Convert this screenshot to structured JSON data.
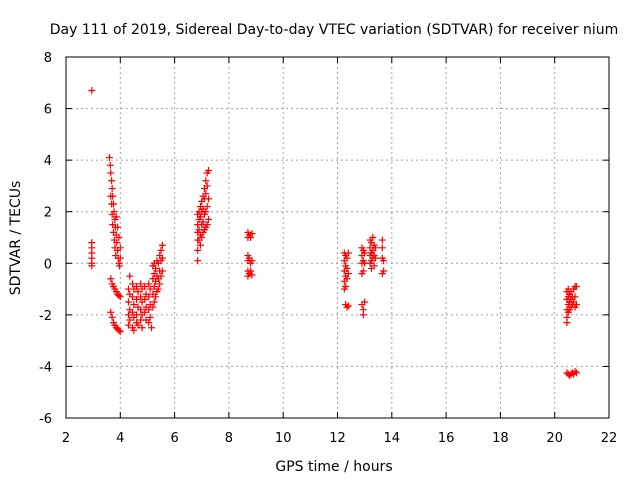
{
  "chart_data": {
    "type": "scatter",
    "title": "Day 111 of 2019, Sidereal Day-to-day VTEC variation (SDTVAR) for receiver nium",
    "xlabel": "GPS time / hours",
    "ylabel": "SDTVAR / TECUs",
    "xlim": [
      2,
      22
    ],
    "ylim": [
      -6,
      8
    ],
    "xticks": [
      "2",
      "4",
      "6",
      "8",
      "10",
      "12",
      "14",
      "16",
      "18",
      "20",
      "22"
    ],
    "yticks": [
      "-6",
      "-4",
      "-2",
      "0",
      "2",
      "4",
      "6",
      "8"
    ],
    "grid": true,
    "marker": "+",
    "color": "#ff0000",
    "series": [
      {
        "name": "SDTVAR",
        "points": [
          [
            2.95,
            6.7
          ],
          [
            2.95,
            0.8
          ],
          [
            2.95,
            0.6
          ],
          [
            2.95,
            0.4
          ],
          [
            2.95,
            0.2
          ],
          [
            2.95,
            0.0
          ],
          [
            2.95,
            -0.1
          ],
          [
            3.6,
            4.1
          ],
          [
            3.63,
            3.8
          ],
          [
            3.65,
            3.5
          ],
          [
            3.68,
            3.2
          ],
          [
            3.7,
            2.9
          ],
          [
            3.72,
            2.6
          ],
          [
            3.75,
            2.3
          ],
          [
            3.77,
            2.0
          ],
          [
            3.8,
            1.7
          ],
          [
            3.82,
            1.4
          ],
          [
            3.85,
            1.1
          ],
          [
            3.87,
            0.8
          ],
          [
            3.9,
            0.5
          ],
          [
            3.92,
            0.2
          ],
          [
            3.95,
            0.0
          ],
          [
            3.97,
            -0.1
          ],
          [
            3.65,
            2.6
          ],
          [
            3.68,
            2.3
          ],
          [
            3.7,
            1.9
          ],
          [
            3.72,
            1.5
          ],
          [
            3.75,
            1.2
          ],
          [
            3.78,
            0.9
          ],
          [
            3.8,
            0.6
          ],
          [
            3.83,
            0.3
          ],
          [
            3.85,
            1.8
          ],
          [
            3.9,
            1.4
          ],
          [
            3.95,
            1.0
          ],
          [
            4.0,
            0.6
          ],
          [
            4.0,
            0.2
          ],
          [
            3.65,
            -0.6
          ],
          [
            3.7,
            -0.8
          ],
          [
            3.75,
            -0.9
          ],
          [
            3.8,
            -1.0
          ],
          [
            3.85,
            -1.1
          ],
          [
            3.9,
            -1.2
          ],
          [
            3.95,
            -1.25
          ],
          [
            4.0,
            -1.3
          ],
          [
            3.65,
            -1.9
          ],
          [
            3.7,
            -2.1
          ],
          [
            3.75,
            -2.3
          ],
          [
            3.8,
            -2.4
          ],
          [
            3.85,
            -2.5
          ],
          [
            3.9,
            -2.55
          ],
          [
            3.95,
            -2.6
          ],
          [
            4.0,
            -2.65
          ],
          [
            4.3,
            -1.0
          ],
          [
            4.3,
            -1.5
          ],
          [
            4.3,
            -2.0
          ],
          [
            4.3,
            -2.4
          ],
          [
            4.35,
            -0.5
          ],
          [
            4.35,
            -1.2
          ],
          [
            4.35,
            -1.8
          ],
          [
            4.35,
            -2.2
          ],
          [
            4.45,
            -0.8
          ],
          [
            4.45,
            -1.3
          ],
          [
            4.45,
            -1.9
          ],
          [
            4.45,
            -2.5
          ],
          [
            4.5,
            -1.0
          ],
          [
            4.5,
            -1.6
          ],
          [
            4.5,
            -2.1
          ],
          [
            4.5,
            -2.6
          ],
          [
            4.6,
            -0.9
          ],
          [
            4.6,
            -1.4
          ],
          [
            4.6,
            -2.0
          ],
          [
            4.6,
            -2.3
          ],
          [
            4.65,
            -1.1
          ],
          [
            4.65,
            -1.7
          ],
          [
            4.65,
            -2.4
          ],
          [
            4.75,
            -0.8
          ],
          [
            4.75,
            -1.3
          ],
          [
            4.75,
            -1.8
          ],
          [
            4.75,
            -2.2
          ],
          [
            4.8,
            -1.0
          ],
          [
            4.8,
            -1.5
          ],
          [
            4.8,
            -2.0
          ],
          [
            4.8,
            -2.5
          ],
          [
            4.9,
            -0.9
          ],
          [
            4.9,
            -1.4
          ],
          [
            4.9,
            -1.9
          ],
          [
            4.95,
            -1.2
          ],
          [
            4.95,
            -1.7
          ],
          [
            4.95,
            -2.2
          ],
          [
            5.05,
            -0.8
          ],
          [
            5.05,
            -1.3
          ],
          [
            5.05,
            -1.8
          ],
          [
            5.05,
            -2.3
          ],
          [
            5.1,
            -1.0
          ],
          [
            5.1,
            -1.6
          ],
          [
            5.1,
            -2.1
          ],
          [
            5.15,
            -2.5
          ],
          [
            5.2,
            -0.1
          ],
          [
            5.2,
            -0.6
          ],
          [
            5.2,
            -1.2
          ],
          [
            5.2,
            -1.7
          ],
          [
            5.25,
            0.0
          ],
          [
            5.25,
            -0.4
          ],
          [
            5.25,
            -0.9
          ],
          [
            5.25,
            -1.5
          ],
          [
            5.3,
            -0.2
          ],
          [
            5.3,
            -0.7
          ],
          [
            5.3,
            -1.3
          ],
          [
            5.35,
            0.1
          ],
          [
            5.35,
            -0.5
          ],
          [
            5.35,
            -1.1
          ],
          [
            5.4,
            0.0
          ],
          [
            5.4,
            -0.6
          ],
          [
            5.4,
            -1.0
          ],
          [
            5.45,
            0.3
          ],
          [
            5.45,
            -0.3
          ],
          [
            5.45,
            -0.8
          ],
          [
            5.5,
            0.5
          ],
          [
            5.5,
            0.1
          ],
          [
            5.5,
            -0.5
          ],
          [
            5.55,
            0.7
          ],
          [
            5.55,
            0.2
          ],
          [
            5.55,
            -0.3
          ],
          [
            6.85,
            1.9
          ],
          [
            6.85,
            1.5
          ],
          [
            6.85,
            1.2
          ],
          [
            6.85,
            0.9
          ],
          [
            6.85,
            0.5
          ],
          [
            6.85,
            0.1
          ],
          [
            6.9,
            2.0
          ],
          [
            6.9,
            1.7
          ],
          [
            6.9,
            1.3
          ],
          [
            6.9,
            0.9
          ],
          [
            6.95,
            2.2
          ],
          [
            6.95,
            1.8
          ],
          [
            6.95,
            1.1
          ],
          [
            6.95,
            0.7
          ],
          [
            7.0,
            2.4
          ],
          [
            7.0,
            2.0
          ],
          [
            7.0,
            1.5
          ],
          [
            7.0,
            1.0
          ],
          [
            7.05,
            2.6
          ],
          [
            7.05,
            2.1
          ],
          [
            7.05,
            1.6
          ],
          [
            7.05,
            1.2
          ],
          [
            7.1,
            2.9
          ],
          [
            7.1,
            2.5
          ],
          [
            7.1,
            1.9
          ],
          [
            7.1,
            1.3
          ],
          [
            7.15,
            3.2
          ],
          [
            7.15,
            2.7
          ],
          [
            7.15,
            2.0
          ],
          [
            7.15,
            1.4
          ],
          [
            7.2,
            3.5
          ],
          [
            7.2,
            3.0
          ],
          [
            7.2,
            2.2
          ],
          [
            7.2,
            1.5
          ],
          [
            7.25,
            3.6
          ],
          [
            7.25,
            2.5
          ],
          [
            7.25,
            1.7
          ],
          [
            8.7,
            1.2
          ],
          [
            8.7,
            1.0
          ],
          [
            8.75,
            1.1
          ],
          [
            8.8,
            1.0
          ],
          [
            8.85,
            1.15
          ],
          [
            8.7,
            0.3
          ],
          [
            8.7,
            0.1
          ],
          [
            8.75,
            0.2
          ],
          [
            8.8,
            0.0
          ],
          [
            8.85,
            0.1
          ],
          [
            8.7,
            -0.3
          ],
          [
            8.7,
            -0.5
          ],
          [
            8.75,
            -0.4
          ],
          [
            8.8,
            -0.3
          ],
          [
            8.85,
            -0.45
          ],
          [
            12.25,
            0.4
          ],
          [
            12.25,
            0.1
          ],
          [
            12.25,
            -0.3
          ],
          [
            12.25,
            -0.7
          ],
          [
            12.25,
            -1.0
          ],
          [
            12.3,
            0.3
          ],
          [
            12.3,
            -0.1
          ],
          [
            12.3,
            -0.5
          ],
          [
            12.3,
            -0.9
          ],
          [
            12.35,
            0.2
          ],
          [
            12.35,
            -0.2
          ],
          [
            12.35,
            -0.6
          ],
          [
            12.4,
            0.4
          ],
          [
            12.4,
            -0.4
          ],
          [
            12.3,
            -1.6
          ],
          [
            12.35,
            -1.7
          ],
          [
            12.4,
            -1.65
          ],
          [
            12.9,
            0.6
          ],
          [
            12.9,
            0.3
          ],
          [
            12.9,
            0.0
          ],
          [
            12.9,
            -0.4
          ],
          [
            12.95,
            0.5
          ],
          [
            12.95,
            0.1
          ],
          [
            12.95,
            -0.3
          ],
          [
            13.0,
            0.4
          ],
          [
            13.0,
            0.0
          ],
          [
            12.9,
            -1.6
          ],
          [
            12.95,
            -1.8
          ],
          [
            12.95,
            -2.0
          ],
          [
            13.0,
            -1.5
          ],
          [
            13.2,
            0.9
          ],
          [
            13.2,
            0.6
          ],
          [
            13.2,
            0.3
          ],
          [
            13.2,
            0.0
          ],
          [
            13.25,
            0.8
          ],
          [
            13.25,
            0.4
          ],
          [
            13.25,
            0.1
          ],
          [
            13.25,
            -0.2
          ],
          [
            13.3,
            1.0
          ],
          [
            13.3,
            0.5
          ],
          [
            13.3,
            0.2
          ],
          [
            13.35,
            0.7
          ],
          [
            13.35,
            0.3
          ],
          [
            13.35,
            -0.1
          ],
          [
            13.4,
            0.6
          ],
          [
            13.4,
            0.2
          ],
          [
            13.65,
            0.9
          ],
          [
            13.65,
            0.6
          ],
          [
            13.65,
            0.2
          ],
          [
            13.65,
            -0.4
          ],
          [
            13.7,
            0.1
          ],
          [
            13.7,
            -0.3
          ],
          [
            20.45,
            -1.1
          ],
          [
            20.45,
            -1.4
          ],
          [
            20.45,
            -1.8
          ],
          [
            20.45,
            -2.1
          ],
          [
            20.45,
            -2.3
          ],
          [
            20.5,
            -1.0
          ],
          [
            20.5,
            -1.3
          ],
          [
            20.5,
            -1.6
          ],
          [
            20.5,
            -1.9
          ],
          [
            20.55,
            -1.2
          ],
          [
            20.55,
            -1.5
          ],
          [
            20.55,
            -1.8
          ],
          [
            20.6,
            -1.1
          ],
          [
            20.6,
            -1.4
          ],
          [
            20.6,
            -1.7
          ],
          [
            20.65,
            -1.3
          ],
          [
            20.65,
            -1.6
          ],
          [
            20.7,
            -1.0
          ],
          [
            20.7,
            -1.5
          ],
          [
            20.75,
            -0.9
          ],
          [
            20.75,
            -1.3
          ],
          [
            20.75,
            -1.7
          ],
          [
            20.8,
            -0.9
          ],
          [
            20.8,
            -1.6
          ],
          [
            20.45,
            -4.25
          ],
          [
            20.5,
            -4.3
          ],
          [
            20.55,
            -4.35
          ],
          [
            20.6,
            -4.3
          ],
          [
            20.65,
            -4.25
          ],
          [
            20.7,
            -4.3
          ],
          [
            20.75,
            -4.2
          ],
          [
            20.8,
            -4.25
          ]
        ]
      }
    ]
  }
}
